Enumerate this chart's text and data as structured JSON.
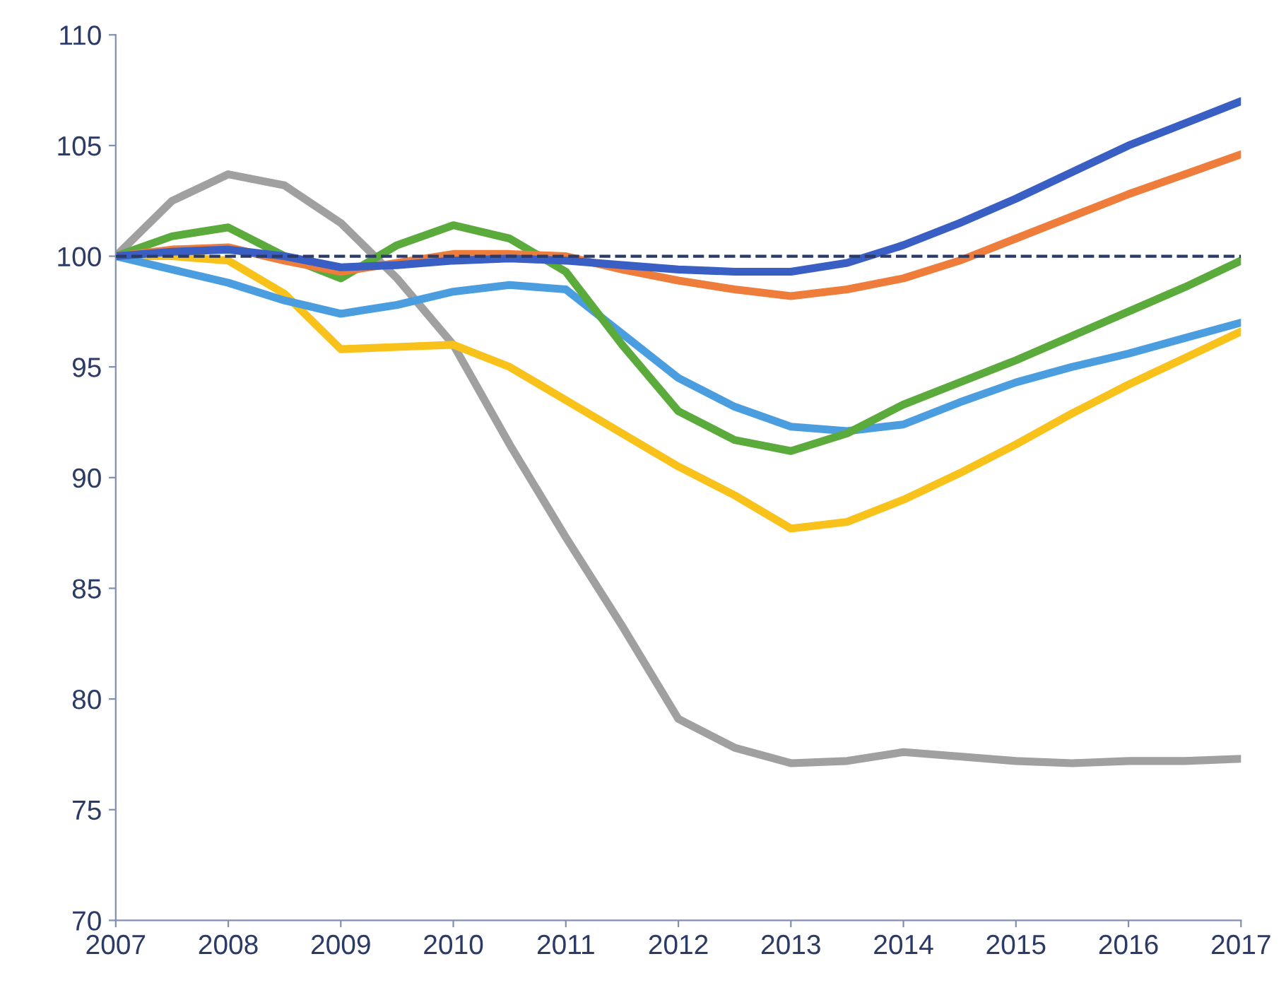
{
  "chart_data": {
    "type": "line",
    "x": [
      2007,
      2007.5,
      2008,
      2008.5,
      2009,
      2009.5,
      2010,
      2010.5,
      2011,
      2011.5,
      2012,
      2012.5,
      2013,
      2013.5,
      2014,
      2014.5,
      2015,
      2015.5,
      2016,
      2016.5,
      2017
    ],
    "series": [
      {
        "color": "#a0a0a0",
        "values": [
          100,
          102.5,
          103.7,
          103.2,
          101.5,
          99,
          96,
          91.5,
          87.3,
          83.3,
          79.1,
          77.8,
          77.1,
          77.2,
          77.6,
          77.4,
          77.2,
          77.1,
          77.2,
          77.2,
          77.3
        ]
      },
      {
        "color": "#f8c21a",
        "values": [
          100,
          100,
          99.8,
          98.3,
          95.8,
          95.9,
          96,
          95,
          93.5,
          92,
          90.5,
          89.2,
          87.7,
          88,
          89,
          90.2,
          91.5,
          92.9,
          94.2,
          95.4,
          96.6
        ]
      },
      {
        "color": "#4a9ee0",
        "values": [
          100,
          99.4,
          98.8,
          98,
          97.4,
          97.8,
          98.4,
          98.7,
          98.5,
          96.5,
          94.5,
          93.2,
          92.3,
          92.1,
          92.4,
          93.4,
          94.3,
          95,
          95.6,
          96.3,
          97
        ]
      },
      {
        "color": "#5aab3c",
        "values": [
          100,
          100.9,
          101.3,
          100,
          99,
          100.5,
          101.4,
          100.8,
          99.3,
          96,
          93,
          91.7,
          91.2,
          92,
          93.3,
          94.3,
          95.3,
          96.4,
          97.5,
          98.6,
          99.8
        ]
      },
      {
        "color": "#ee7d3b",
        "values": [
          100,
          100.3,
          100.4,
          99.8,
          99.3,
          99.7,
          100.1,
          100.1,
          100,
          99.4,
          98.9,
          98.5,
          98.2,
          98.5,
          99,
          99.8,
          100.8,
          101.8,
          102.8,
          103.7,
          104.6
        ]
      },
      {
        "color": "#3a5fc4",
        "values": [
          100,
          100.2,
          100.3,
          100,
          99.5,
          99.6,
          99.8,
          99.9,
          99.8,
          99.6,
          99.4,
          99.3,
          99.3,
          99.7,
          100.5,
          101.5,
          102.6,
          103.8,
          105,
          106,
          107
        ]
      }
    ],
    "xlim": [
      2007,
      2017
    ],
    "xticks": [
      2007,
      2008,
      2009,
      2010,
      2011,
      2012,
      2013,
      2014,
      2015,
      2016,
      2017
    ],
    "ylim": [
      70,
      110
    ],
    "yticks": [
      70,
      75,
      80,
      85,
      90,
      95,
      100,
      105,
      110
    ],
    "ref_lines": [
      {
        "axis": "y",
        "value": 100,
        "color": "#2b3a67",
        "line_style": "dashed"
      }
    ],
    "grid": false,
    "legend": false,
    "marker": "none",
    "line_style": "solid"
  }
}
